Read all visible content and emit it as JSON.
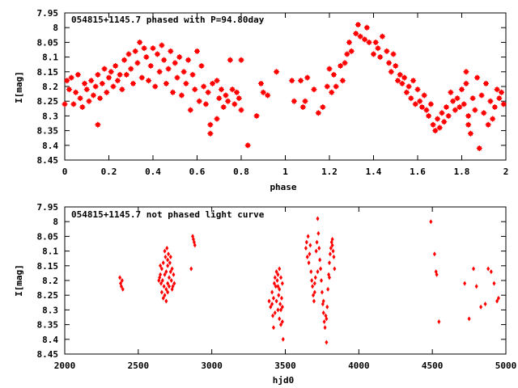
{
  "chart_data": [
    {
      "type": "scatter",
      "title": "054815+1145.7 phased with P=94.80day",
      "xlabel": "phase",
      "ylabel": "I[mag]",
      "xlim": [
        0,
        2
      ],
      "ylim": [
        8.45,
        7.95
      ],
      "y_inverted": true,
      "grid": false,
      "marker_color": "#ff0000",
      "marker": "filled-star",
      "x_ticks": [
        "0",
        "0.2",
        "0.4",
        "0.6",
        "0.8",
        "1",
        "1.2",
        "1.4",
        "1.6",
        "1.8",
        "2"
      ],
      "y_ticks": [
        "7.95",
        "8",
        "8.05",
        "8.1",
        "8.15",
        "8.2",
        "8.25",
        "8.3",
        "8.35",
        "8.4",
        "8.45"
      ],
      "points": [
        [
          0.0,
          8.26
        ],
        [
          0.01,
          8.18
        ],
        [
          0.02,
          8.21
        ],
        [
          0.03,
          8.17
        ],
        [
          0.04,
          8.26
        ],
        [
          0.05,
          8.22
        ],
        [
          0.06,
          8.16
        ],
        [
          0.07,
          8.24
        ],
        [
          0.08,
          8.27
        ],
        [
          0.09,
          8.19
        ],
        [
          0.1,
          8.21
        ],
        [
          0.11,
          8.25
        ],
        [
          0.12,
          8.18
        ],
        [
          0.13,
          8.23
        ],
        [
          0.14,
          8.2
        ],
        [
          0.15,
          8.16
        ],
        [
          0.15,
          8.33
        ],
        [
          0.16,
          8.24
        ],
        [
          0.17,
          8.19
        ],
        [
          0.18,
          8.14
        ],
        [
          0.19,
          8.22
        ],
        [
          0.2,
          8.17
        ],
        [
          0.21,
          8.15
        ],
        [
          0.22,
          8.2
        ],
        [
          0.23,
          8.13
        ],
        [
          0.24,
          8.18
        ],
        [
          0.25,
          8.16
        ],
        [
          0.26,
          8.21
        ],
        [
          0.27,
          8.11
        ],
        [
          0.28,
          8.16
        ],
        [
          0.29,
          8.09
        ],
        [
          0.3,
          8.14
        ],
        [
          0.31,
          8.19
        ],
        [
          0.32,
          8.08
        ],
        [
          0.33,
          8.12
        ],
        [
          0.34,
          8.05
        ],
        [
          0.35,
          8.17
        ],
        [
          0.36,
          8.07
        ],
        [
          0.37,
          8.1
        ],
        [
          0.38,
          8.18
        ],
        [
          0.39,
          8.13
        ],
        [
          0.4,
          8.07
        ],
        [
          0.41,
          8.2
        ],
        [
          0.42,
          8.09
        ],
        [
          0.43,
          8.15
        ],
        [
          0.44,
          8.06
        ],
        [
          0.45,
          8.11
        ],
        [
          0.46,
          8.19
        ],
        [
          0.47,
          8.14
        ],
        [
          0.48,
          8.08
        ],
        [
          0.49,
          8.22
        ],
        [
          0.5,
          8.12
        ],
        [
          0.51,
          8.17
        ],
        [
          0.52,
          8.1
        ],
        [
          0.53,
          8.23
        ],
        [
          0.54,
          8.15
        ],
        [
          0.55,
          8.19
        ],
        [
          0.56,
          8.11
        ],
        [
          0.57,
          8.28
        ],
        [
          0.58,
          8.16
        ],
        [
          0.59,
          8.21
        ],
        [
          0.6,
          8.08
        ],
        [
          0.61,
          8.25
        ],
        [
          0.62,
          8.13
        ],
        [
          0.63,
          8.2
        ],
        [
          0.64,
          8.26
        ],
        [
          0.65,
          8.22
        ],
        [
          0.66,
          8.33
        ],
        [
          0.66,
          8.36
        ],
        [
          0.67,
          8.19
        ],
        [
          0.69,
          8.18
        ],
        [
          0.69,
          8.31
        ],
        [
          0.7,
          8.24
        ],
        [
          0.71,
          8.21
        ],
        [
          0.72,
          8.27
        ],
        [
          0.73,
          8.23
        ],
        [
          0.74,
          8.25
        ],
        [
          0.75,
          8.11
        ],
        [
          0.76,
          8.21
        ],
        [
          0.77,
          8.26
        ],
        [
          0.78,
          8.22
        ],
        [
          0.79,
          8.24
        ],
        [
          0.8,
          8.28
        ],
        [
          0.8,
          8.11
        ],
        [
          0.83,
          8.4
        ],
        [
          0.87,
          8.3
        ],
        [
          0.89,
          8.19
        ],
        [
          0.9,
          8.22
        ],
        [
          0.92,
          8.23
        ],
        [
          0.96,
          8.15
        ],
        [
          1.03,
          8.18
        ],
        [
          1.04,
          8.25
        ],
        [
          1.07,
          8.18
        ],
        [
          1.08,
          8.27
        ],
        [
          1.09,
          8.25
        ],
        [
          1.1,
          8.17
        ],
        [
          1.13,
          8.21
        ],
        [
          1.15,
          8.29
        ],
        [
          1.17,
          8.27
        ],
        [
          1.19,
          8.2
        ],
        [
          1.2,
          8.14
        ],
        [
          1.21,
          8.22
        ],
        [
          1.22,
          8.16
        ],
        [
          1.23,
          8.2
        ],
        [
          1.25,
          8.13
        ],
        [
          1.26,
          8.18
        ],
        [
          1.27,
          8.12
        ],
        [
          1.28,
          8.09
        ],
        [
          1.29,
          8.05
        ],
        [
          1.3,
          8.08
        ],
        [
          1.32,
          8.02
        ],
        [
          1.33,
          7.99
        ],
        [
          1.34,
          8.03
        ],
        [
          1.36,
          8.04
        ],
        [
          1.37,
          8.0
        ],
        [
          1.38,
          8.05
        ],
        [
          1.4,
          8.09
        ],
        [
          1.41,
          8.05
        ],
        [
          1.42,
          8.07
        ],
        [
          1.43,
          8.1
        ],
        [
          1.44,
          8.03
        ],
        [
          1.46,
          8.08
        ],
        [
          1.47,
          8.12
        ],
        [
          1.48,
          8.15
        ],
        [
          1.49,
          8.09
        ],
        [
          1.5,
          8.13
        ],
        [
          1.51,
          8.18
        ],
        [
          1.52,
          8.16
        ],
        [
          1.53,
          8.19
        ],
        [
          1.54,
          8.17
        ],
        [
          1.55,
          8.22
        ],
        [
          1.56,
          8.2
        ],
        [
          1.57,
          8.24
        ],
        [
          1.58,
          8.18
        ],
        [
          1.59,
          8.26
        ],
        [
          1.6,
          8.21
        ],
        [
          1.61,
          8.25
        ],
        [
          1.62,
          8.27
        ],
        [
          1.63,
          8.23
        ],
        [
          1.64,
          8.28
        ],
        [
          1.65,
          8.3
        ],
        [
          1.66,
          8.26
        ],
        [
          1.67,
          8.33
        ],
        [
          1.68,
          8.35
        ],
        [
          1.69,
          8.31
        ],
        [
          1.7,
          8.34
        ],
        [
          1.71,
          8.29
        ],
        [
          1.72,
          8.32
        ],
        [
          1.73,
          8.27
        ],
        [
          1.74,
          8.3
        ],
        [
          1.75,
          8.22
        ],
        [
          1.76,
          8.25
        ],
        [
          1.77,
          8.28
        ],
        [
          1.78,
          8.24
        ],
        [
          1.79,
          8.27
        ],
        [
          1.8,
          8.21
        ],
        [
          1.81,
          8.26
        ],
        [
          1.82,
          8.19
        ],
        [
          1.82,
          8.15
        ],
        [
          1.83,
          8.3
        ],
        [
          1.83,
          8.33
        ],
        [
          1.84,
          8.36
        ],
        [
          1.85,
          8.24
        ],
        [
          1.86,
          8.28
        ],
        [
          1.87,
          8.17
        ],
        [
          1.88,
          8.41
        ],
        [
          1.89,
          8.23
        ],
        [
          1.9,
          8.29
        ],
        [
          1.91,
          8.19
        ],
        [
          1.92,
          8.33
        ],
        [
          1.93,
          8.25
        ],
        [
          1.94,
          8.31
        ],
        [
          1.95,
          8.27
        ],
        [
          1.96,
          8.21
        ],
        [
          1.97,
          8.24
        ],
        [
          1.98,
          8.22
        ],
        [
          1.99,
          8.26
        ]
      ]
    },
    {
      "type": "scatter",
      "title": "054815+1145.7 not phased light curve",
      "xlabel": "hjd0",
      "ylabel": "I[mag]",
      "xlim": [
        2000,
        5000
      ],
      "ylim": [
        8.45,
        7.95
      ],
      "y_inverted": true,
      "grid": false,
      "marker_color": "#ff0000",
      "marker": "filled-diamond",
      "x_ticks": [
        "2000",
        "2500",
        "3000",
        "3500",
        "4000",
        "4500",
        "5000"
      ],
      "y_ticks": [
        "7.95",
        "8",
        "8.05",
        "8.1",
        "8.15",
        "8.2",
        "8.25",
        "8.3",
        "8.35",
        "8.4",
        "8.45"
      ],
      "points": [
        [
          2375,
          8.19
        ],
        [
          2380,
          8.21
        ],
        [
          2385,
          8.22
        ],
        [
          2390,
          8.2
        ],
        [
          2395,
          8.23
        ],
        [
          2640,
          8.2
        ],
        [
          2645,
          8.19
        ],
        [
          2650,
          8.18
        ],
        [
          2655,
          8.21
        ],
        [
          2660,
          8.16
        ],
        [
          2665,
          8.2
        ],
        [
          2670,
          8.14
        ],
        [
          2675,
          8.22
        ],
        [
          2680,
          8.18
        ],
        [
          2685,
          8.12
        ],
        [
          2690,
          8.17
        ],
        [
          2690,
          8.23
        ],
        [
          2695,
          8.09
        ],
        [
          2700,
          8.15
        ],
        [
          2700,
          8.21
        ],
        [
          2705,
          8.11
        ],
        [
          2710,
          8.19
        ],
        [
          2715,
          8.14
        ],
        [
          2720,
          8.17
        ],
        [
          2725,
          8.2
        ],
        [
          2730,
          8.16
        ],
        [
          2735,
          8.22
        ],
        [
          2740,
          8.18
        ],
        [
          2745,
          8.21
        ],
        [
          2660,
          8.24
        ],
        [
          2670,
          8.26
        ],
        [
          2680,
          8.25
        ],
        [
          2690,
          8.27
        ],
        [
          2700,
          8.24
        ],
        [
          2710,
          8.22
        ],
        [
          2650,
          8.15
        ],
        [
          2680,
          8.1
        ],
        [
          2700,
          8.13
        ],
        [
          2720,
          8.12
        ],
        [
          2730,
          8.23
        ],
        [
          2860,
          8.16
        ],
        [
          2870,
          8.05
        ],
        [
          2875,
          8.06
        ],
        [
          2880,
          8.07
        ],
        [
          2885,
          8.08
        ],
        [
          3390,
          8.27
        ],
        [
          3400,
          8.29
        ],
        [
          3410,
          8.24
        ],
        [
          3415,
          8.32
        ],
        [
          3420,
          8.36
        ],
        [
          3425,
          8.21
        ],
        [
          3430,
          8.19
        ],
        [
          3435,
          8.22
        ],
        [
          3440,
          8.17
        ],
        [
          3445,
          8.2
        ],
        [
          3450,
          8.18
        ],
        [
          3455,
          8.25
        ],
        [
          3460,
          8.23
        ],
        [
          3465,
          8.28
        ],
        [
          3470,
          8.3
        ],
        [
          3475,
          8.26
        ],
        [
          3480,
          8.34
        ],
        [
          3485,
          8.4
        ],
        [
          3430,
          8.31
        ],
        [
          3440,
          8.27
        ],
        [
          3450,
          8.22
        ],
        [
          3460,
          8.16
        ],
        [
          3470,
          8.19
        ],
        [
          3480,
          8.21
        ],
        [
          3410,
          8.28
        ],
        [
          3420,
          8.26
        ],
        [
          3460,
          8.33
        ],
        [
          3470,
          8.35
        ],
        [
          3480,
          8.29
        ],
        [
          3450,
          8.3
        ],
        [
          3640,
          8.09
        ],
        [
          3645,
          8.07
        ],
        [
          3650,
          8.12
        ],
        [
          3655,
          8.05
        ],
        [
          3660,
          8.14
        ],
        [
          3665,
          8.11
        ],
        [
          3670,
          8.08
        ],
        [
          3675,
          8.17
        ],
        [
          3680,
          8.2
        ],
        [
          3685,
          8.22
        ],
        [
          3690,
          8.25
        ],
        [
          3695,
          8.27
        ],
        [
          3700,
          8.24
        ],
        [
          3705,
          8.19
        ],
        [
          3710,
          8.1
        ],
        [
          3715,
          8.07
        ],
        [
          3720,
          7.99
        ],
        [
          3725,
          8.04
        ],
        [
          3730,
          8.09
        ],
        [
          3735,
          8.13
        ],
        [
          3740,
          8.16
        ],
        [
          3745,
          8.2
        ],
        [
          3750,
          8.24
        ],
        [
          3755,
          8.28
        ],
        [
          3760,
          8.31
        ],
        [
          3765,
          8.34
        ],
        [
          3770,
          8.36
        ],
        [
          3775,
          8.32
        ],
        [
          3780,
          8.41
        ],
        [
          3785,
          8.29
        ],
        [
          3790,
          8.23
        ],
        [
          3795,
          8.18
        ],
        [
          3800,
          8.14
        ],
        [
          3805,
          8.11
        ],
        [
          3810,
          8.09
        ],
        [
          3815,
          8.07
        ],
        [
          3820,
          8.06
        ],
        [
          3825,
          8.1
        ],
        [
          3830,
          8.12
        ],
        [
          3835,
          8.16
        ],
        [
          3700,
          8.21
        ],
        [
          3720,
          8.17
        ],
        [
          3760,
          8.27
        ],
        [
          3780,
          8.33
        ],
        [
          3800,
          8.19
        ],
        [
          3820,
          8.08
        ],
        [
          4490,
          8.0
        ],
        [
          4515,
          8.11
        ],
        [
          4525,
          8.17
        ],
        [
          4530,
          8.18
        ],
        [
          4545,
          8.34
        ],
        [
          4720,
          8.21
        ],
        [
          4750,
          8.33
        ],
        [
          4780,
          8.16
        ],
        [
          4800,
          8.22
        ],
        [
          4830,
          8.29
        ],
        [
          4860,
          8.28
        ],
        [
          4880,
          8.16
        ],
        [
          4900,
          8.17
        ],
        [
          4920,
          8.21
        ],
        [
          4940,
          8.27
        ],
        [
          4950,
          8.26
        ]
      ]
    }
  ]
}
